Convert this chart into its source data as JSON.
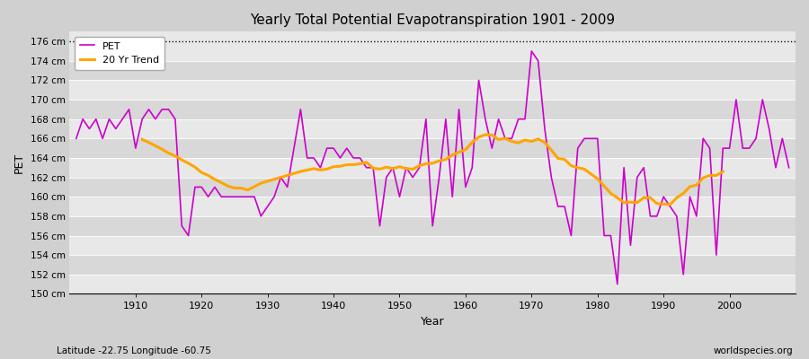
{
  "title": "Yearly Total Potential Evapotranspiration 1901 - 2009",
  "xlabel": "Year",
  "ylabel": "PET",
  "subtitle": "Latitude -22.75 Longitude -60.75",
  "watermark": "worldspecies.org",
  "pet_color": "#cc00cc",
  "trend_color": "#ffa500",
  "bg_color": "#d0d0d0",
  "band_light": "#e8e8e8",
  "band_dark": "#d8d8d8",
  "ylim": [
    150,
    177
  ],
  "yticks": [
    150,
    152,
    154,
    156,
    158,
    160,
    162,
    164,
    166,
    168,
    170,
    172,
    174,
    176
  ],
  "years": [
    1901,
    1902,
    1903,
    1904,
    1905,
    1906,
    1907,
    1908,
    1909,
    1910,
    1911,
    1912,
    1913,
    1914,
    1915,
    1916,
    1917,
    1918,
    1919,
    1920,
    1921,
    1922,
    1923,
    1924,
    1925,
    1926,
    1927,
    1928,
    1929,
    1930,
    1931,
    1932,
    1933,
    1934,
    1935,
    1936,
    1937,
    1938,
    1939,
    1940,
    1941,
    1942,
    1943,
    1944,
    1945,
    1946,
    1947,
    1948,
    1949,
    1950,
    1951,
    1952,
    1953,
    1954,
    1955,
    1956,
    1957,
    1958,
    1959,
    1960,
    1961,
    1962,
    1963,
    1964,
    1965,
    1966,
    1967,
    1968,
    1969,
    1970,
    1971,
    1972,
    1973,
    1974,
    1975,
    1976,
    1977,
    1978,
    1979,
    1980,
    1981,
    1982,
    1983,
    1984,
    1985,
    1986,
    1987,
    1988,
    1989,
    1990,
    1991,
    1992,
    1993,
    1994,
    1995,
    1996,
    1997,
    1998,
    1999,
    2000,
    2001,
    2002,
    2003,
    2004,
    2005,
    2006,
    2007,
    2008,
    2009
  ],
  "pet_values": [
    166,
    168,
    167,
    168,
    166,
    168,
    167,
    168,
    169,
    165,
    168,
    169,
    168,
    169,
    169,
    168,
    157,
    156,
    161,
    161,
    160,
    161,
    160,
    160,
    160,
    160,
    160,
    160,
    158,
    159,
    160,
    162,
    161,
    165,
    169,
    164,
    164,
    163,
    165,
    165,
    164,
    165,
    164,
    164,
    163,
    163,
    157,
    162,
    163,
    160,
    163,
    162,
    163,
    168,
    157,
    162,
    168,
    160,
    169,
    161,
    163,
    172,
    168,
    165,
    168,
    166,
    166,
    168,
    168,
    175,
    174,
    167,
    162,
    159,
    159,
    156,
    165,
    166,
    166,
    166,
    156,
    156,
    151,
    163,
    155,
    162,
    163,
    158,
    158,
    160,
    159,
    158,
    152,
    160,
    158,
    166,
    165,
    154,
    165,
    165,
    170,
    165,
    165,
    166,
    170,
    167,
    163,
    166,
    163
  ]
}
